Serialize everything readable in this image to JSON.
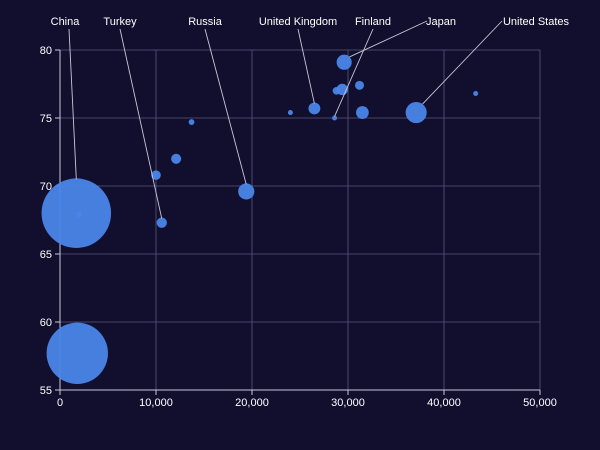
{
  "chart_data": {
    "type": "scatter",
    "variant": "bubble",
    "title": "",
    "xlabel": "",
    "ylabel": "",
    "xlim": [
      0,
      50000
    ],
    "ylim": [
      55,
      80
    ],
    "x_ticks": [
      {
        "value": 0,
        "label": "0"
      },
      {
        "value": 10000,
        "label": "10,000"
      },
      {
        "value": 20000,
        "label": "20,000"
      },
      {
        "value": 30000,
        "label": "30,000"
      },
      {
        "value": 40000,
        "label": "40,000"
      },
      {
        "value": 50000,
        "label": "50,000"
      }
    ],
    "y_ticks": [
      {
        "value": 55,
        "label": "55"
      },
      {
        "value": 60,
        "label": "60"
      },
      {
        "value": 65,
        "label": "65"
      },
      {
        "value": 70,
        "label": "70"
      },
      {
        "value": 75,
        "label": "75"
      },
      {
        "value": 80,
        "label": "80"
      }
    ],
    "grid": true,
    "colors": {
      "background": "#110e2e",
      "bubble": "#4a86e8",
      "grid": "#5a5878",
      "axis": "#c8c8d8",
      "text": "#ffffff",
      "leader": "#c8c8d8"
    },
    "points": [
      {
        "label": "China",
        "x": 1700,
        "y": 68.0,
        "size": 1300
      },
      {
        "label": "",
        "x": 1800,
        "y": 57.7,
        "size": 1000
      },
      {
        "label": "",
        "x": 2000,
        "y": 67.9,
        "size": 2
      },
      {
        "label": "Turkey",
        "x": 10600,
        "y": 67.3,
        "size": 15
      },
      {
        "label": "",
        "x": 10000,
        "y": 70.8,
        "size": 12
      },
      {
        "label": "",
        "x": 12100,
        "y": 72.0,
        "size": 14
      },
      {
        "label": "",
        "x": 13700,
        "y": 74.7,
        "size": 2
      },
      {
        "label": "Russia",
        "x": 19400,
        "y": 69.6,
        "size": 50
      },
      {
        "label": "",
        "x": 24000,
        "y": 75.4,
        "size": 1
      },
      {
        "label": "United Kingdom",
        "x": 26500,
        "y": 75.7,
        "size": 22
      },
      {
        "label": "Finland",
        "x": 28600,
        "y": 75.0,
        "size": 1
      },
      {
        "label": "",
        "x": 28800,
        "y": 77.0,
        "size": 6
      },
      {
        "label": "",
        "x": 29400,
        "y": 77.1,
        "size": 20
      },
      {
        "label": "Japan",
        "x": 29600,
        "y": 79.1,
        "size": 42
      },
      {
        "label": "",
        "x": 31200,
        "y": 77.4,
        "size": 10
      },
      {
        "label": "",
        "x": 31500,
        "y": 75.4,
        "size": 27
      },
      {
        "label": "United States",
        "x": 37100,
        "y": 75.4,
        "size": 95
      },
      {
        "label": "",
        "x": 43300,
        "y": 76.8,
        "size": 1
      }
    ]
  }
}
